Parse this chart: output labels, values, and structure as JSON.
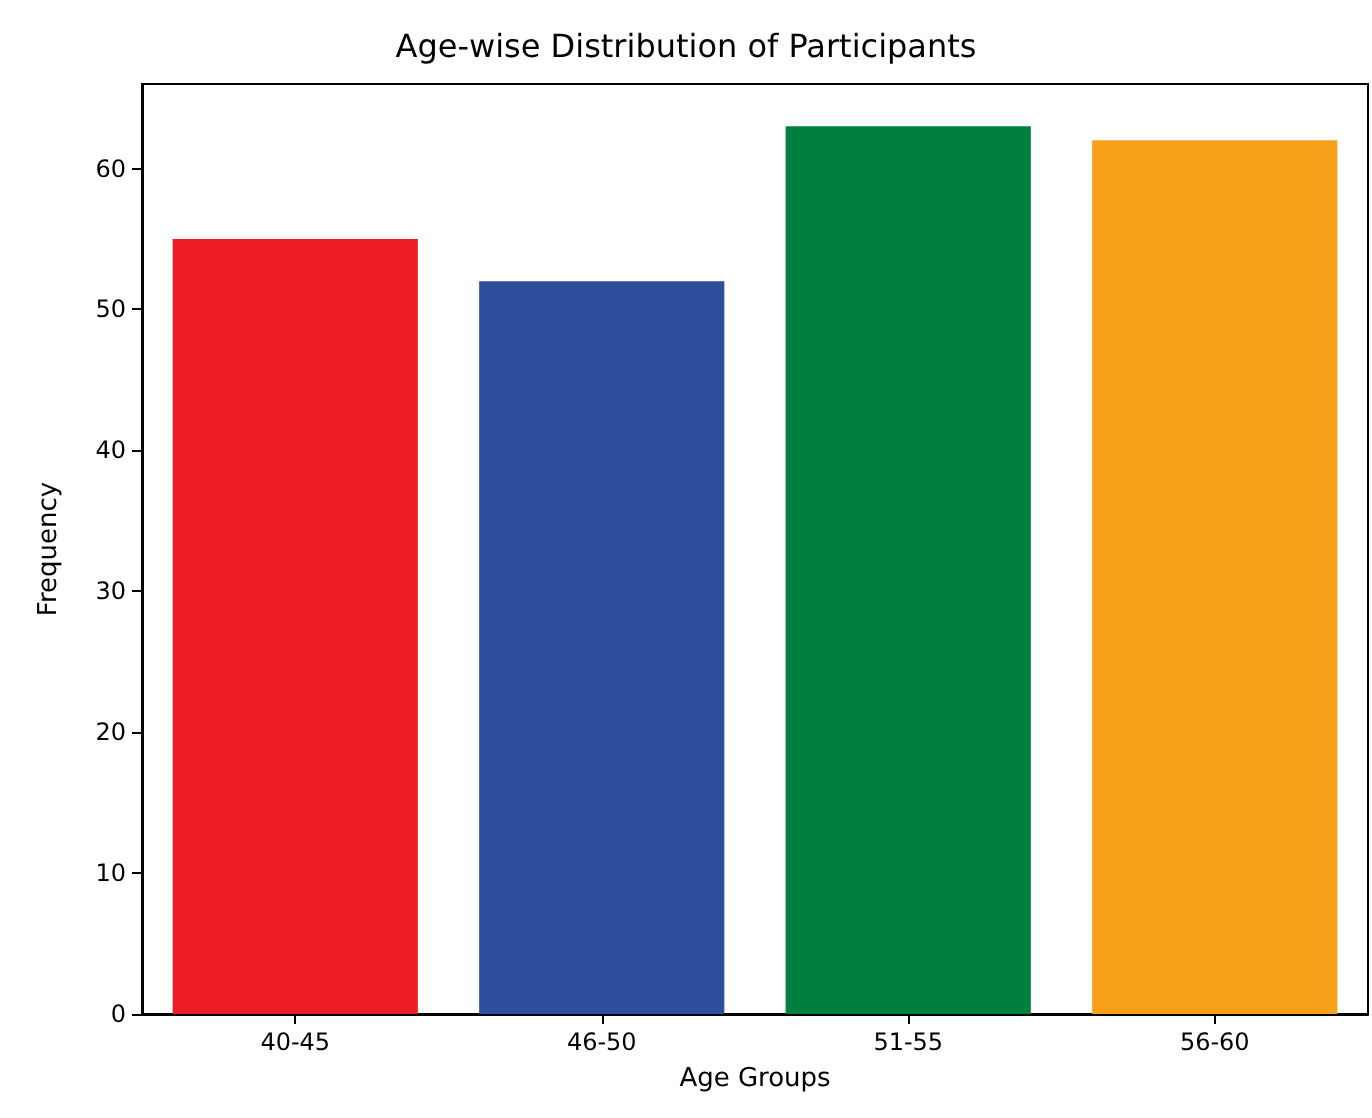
{
  "chart_data": {
    "type": "bar",
    "title": "Age-wise Distribution of Participants",
    "xlabel": "Age Groups",
    "ylabel": "Frequency",
    "categories": [
      "40-45",
      "46-50",
      "51-55",
      "56-60"
    ],
    "values": [
      55,
      52,
      63,
      62
    ],
    "colors": [
      "#ed1c24",
      "#2e4f9e",
      "#007f3f",
      "#f7a11a"
    ],
    "ylim": [
      0,
      66
    ],
    "yticks": [
      0,
      10,
      20,
      30,
      40,
      50,
      60
    ],
    "grid": false
  }
}
